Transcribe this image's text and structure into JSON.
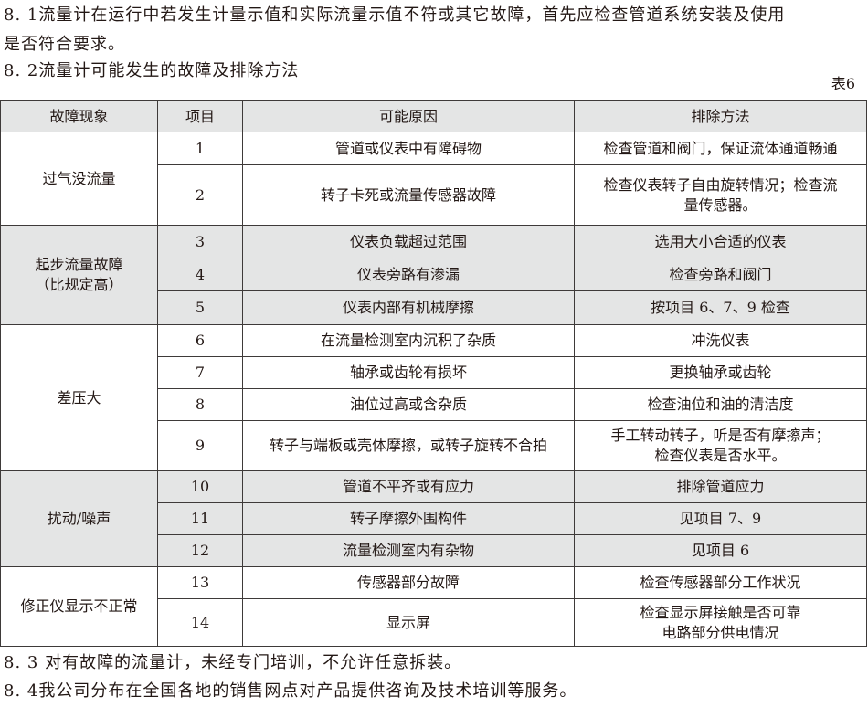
{
  "paragraphs": {
    "p81_line1": "8. 1流量计在运行中若发生计量示值和实际流量示值不符或其它故障，首先应检查管道系统安装及使用",
    "p81_line2": "是否符合要求。",
    "p82": "8. 2流量计可能发生的故障及排除方法",
    "p83": "8. 3 对有故障的流量计，未经专门培训，不允许任意拆装。",
    "p84": "8. 4我公司分布在全国各地的销售网点对产品提供咨询及技术培训等服务。"
  },
  "table_label": "表6",
  "table": {
    "headers": [
      "故障现象",
      "项目",
      "可能原因",
      "排除方法"
    ],
    "groups": [
      {
        "symptom": [
          "过气没流量"
        ],
        "shaded": false,
        "rows": [
          {
            "item": "1",
            "cause": "管道或仪表中有障碍物",
            "remedy": [
              "检查管道和阀门，保证流体通道畅通"
            ],
            "h": 36
          },
          {
            "item": "2",
            "cause": "转子卡死或流量传感器故障",
            "remedy": [
              "检查仪表转子自由旋转情况；检查流",
              "量传感器。"
            ],
            "h": 66
          }
        ]
      },
      {
        "symptom": [
          "起步流量故障",
          "（比规定高）"
        ],
        "shaded": true,
        "rows": [
          {
            "item": "3",
            "cause": "仪表负载超过范围",
            "remedy": [
              "选用大小合适的仪表"
            ],
            "h": 37
          },
          {
            "item": "4",
            "cause": "仪表旁路有渗漏",
            "remedy": [
              "检查旁路和阀门"
            ],
            "h": 35
          },
          {
            "item": "5",
            "cause": "仪表内部有机械摩擦",
            "remedy": [
              "按项目 6、7、9 检查"
            ],
            "h": 37
          }
        ]
      },
      {
        "symptom": [
          "差压大"
        ],
        "shaded": false,
        "rows": [
          {
            "item": "6",
            "cause": "在流量检测室内沉积了杂质",
            "remedy": [
              "冲洗仪表"
            ],
            "h": 35
          },
          {
            "item": "7",
            "cause": "轴承或齿轮有损坏",
            "remedy": [
              "更换轴承或齿轮"
            ],
            "h": 35
          },
          {
            "item": "8",
            "cause": "油位过高或含杂质",
            "remedy": [
              "检查油位和油的清洁度"
            ],
            "h": 35
          },
          {
            "item": "9",
            "cause": "转子与端板或壳体摩擦，或转子旋转不合拍",
            "remedy": [
              "手工转动转子，听是否有摩擦声；",
              "检查仪表是否水平。"
            ],
            "h": 55
          }
        ]
      },
      {
        "symptom": [
          "扰动/噪声"
        ],
        "shaded": true,
        "rows": [
          {
            "item": "10",
            "cause": "管道不平齐或有应力",
            "remedy": [
              "排除管道应力"
            ],
            "h": 35
          },
          {
            "item": "11",
            "cause": "转子摩擦外围构件",
            "remedy": [
              "见项目 7、9"
            ],
            "h": 35
          },
          {
            "item": "12",
            "cause": "流量检测室内有杂物",
            "remedy": [
              "见项目 6"
            ],
            "h": 35
          }
        ]
      },
      {
        "symptom": [
          "修正仪显示不正常"
        ],
        "shaded": false,
        "rows": [
          {
            "item": "13",
            "cause": "传感器部分故障",
            "remedy": [
              "检查传感器部分工作状况"
            ],
            "h": 35
          },
          {
            "item": "14",
            "cause": "显示屏",
            "remedy": [
              "检查显示屏接触是否可靠",
              "电路部分供电情况"
            ],
            "h": 52
          }
        ]
      }
    ]
  }
}
